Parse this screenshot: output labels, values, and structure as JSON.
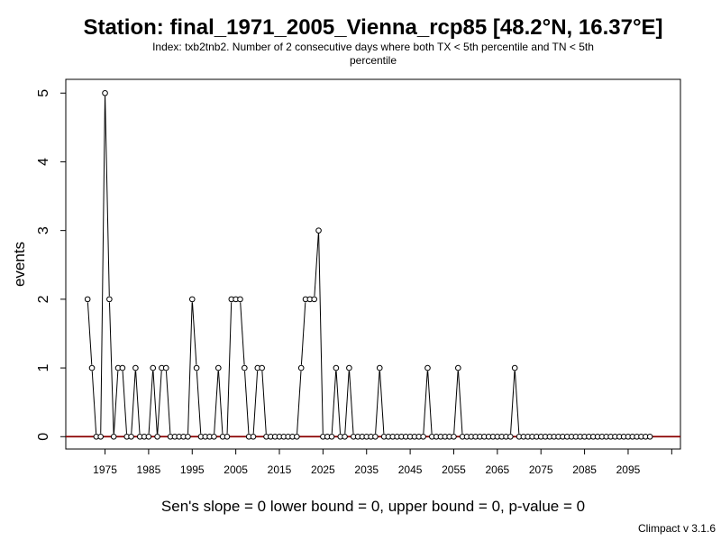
{
  "chart_data": {
    "type": "line",
    "title": "Station: final_1971_2005_Vienna_rcp85 [48.2°N, 16.37°E]",
    "subtitle_line1": "Index: txb2tnb2. Number of 2 consecutive days where both TX < 5th percentile and TN < 5th",
    "subtitle_line2": "percentile",
    "xlabel": "",
    "ylabel": "events",
    "xlim": [
      1966,
      2107
    ],
    "ylim": [
      -0.18,
      5.2
    ],
    "x_ticks": [
      1975,
      1985,
      1995,
      2005,
      2015,
      2025,
      2035,
      2045,
      2055,
      2065,
      2075,
      2085,
      2095,
      2105
    ],
    "x_tick_labels": [
      "1975",
      "1985",
      "1995",
      "2005",
      "2015",
      "2025",
      "2035",
      "2045",
      "2055",
      "2065",
      "2075",
      "2085",
      "2095",
      ""
    ],
    "y_ticks": [
      0,
      1,
      2,
      3,
      4,
      5
    ],
    "y_tick_labels": [
      "0",
      "1",
      "2",
      "3",
      "4",
      "5"
    ],
    "x_start": 1971,
    "values": [
      2,
      1,
      0,
      0,
      5,
      2,
      0,
      1,
      1,
      0,
      0,
      1,
      0,
      0,
      0,
      1,
      0,
      1,
      1,
      0,
      0,
      0,
      0,
      0,
      2,
      1,
      0,
      0,
      0,
      0,
      1,
      0,
      0,
      2,
      2,
      2,
      1,
      0,
      0,
      1,
      1,
      0,
      0,
      0,
      0,
      0,
      0,
      0,
      0,
      1,
      2,
      2,
      2,
      3,
      0,
      0,
      0,
      1,
      0,
      0,
      1,
      0,
      0,
      0,
      0,
      0,
      0,
      1,
      0,
      0,
      0,
      0,
      0,
      0,
      0,
      0,
      0,
      0,
      1,
      0,
      0,
      0,
      0,
      0,
      0,
      1,
      0,
      0,
      0,
      0,
      0,
      0,
      0,
      0,
      0,
      0,
      0,
      0,
      1,
      0,
      0,
      0,
      0,
      0,
      0,
      0,
      0,
      0,
      0,
      0,
      0,
      0,
      0,
      0,
      0,
      0,
      0,
      0,
      0,
      0,
      0,
      0,
      0,
      0,
      0,
      0,
      0,
      0,
      0,
      0
    ],
    "trend_value": 0,
    "grid": false,
    "colors": {
      "line": "#000000",
      "points": "#000000",
      "trend": "#8b0000"
    }
  },
  "stats_text": "Sen's slope = 0   lower bound = 0,   upper bound = 0,   p-value = 0",
  "footer_text": "Climpact v 3.1.6"
}
